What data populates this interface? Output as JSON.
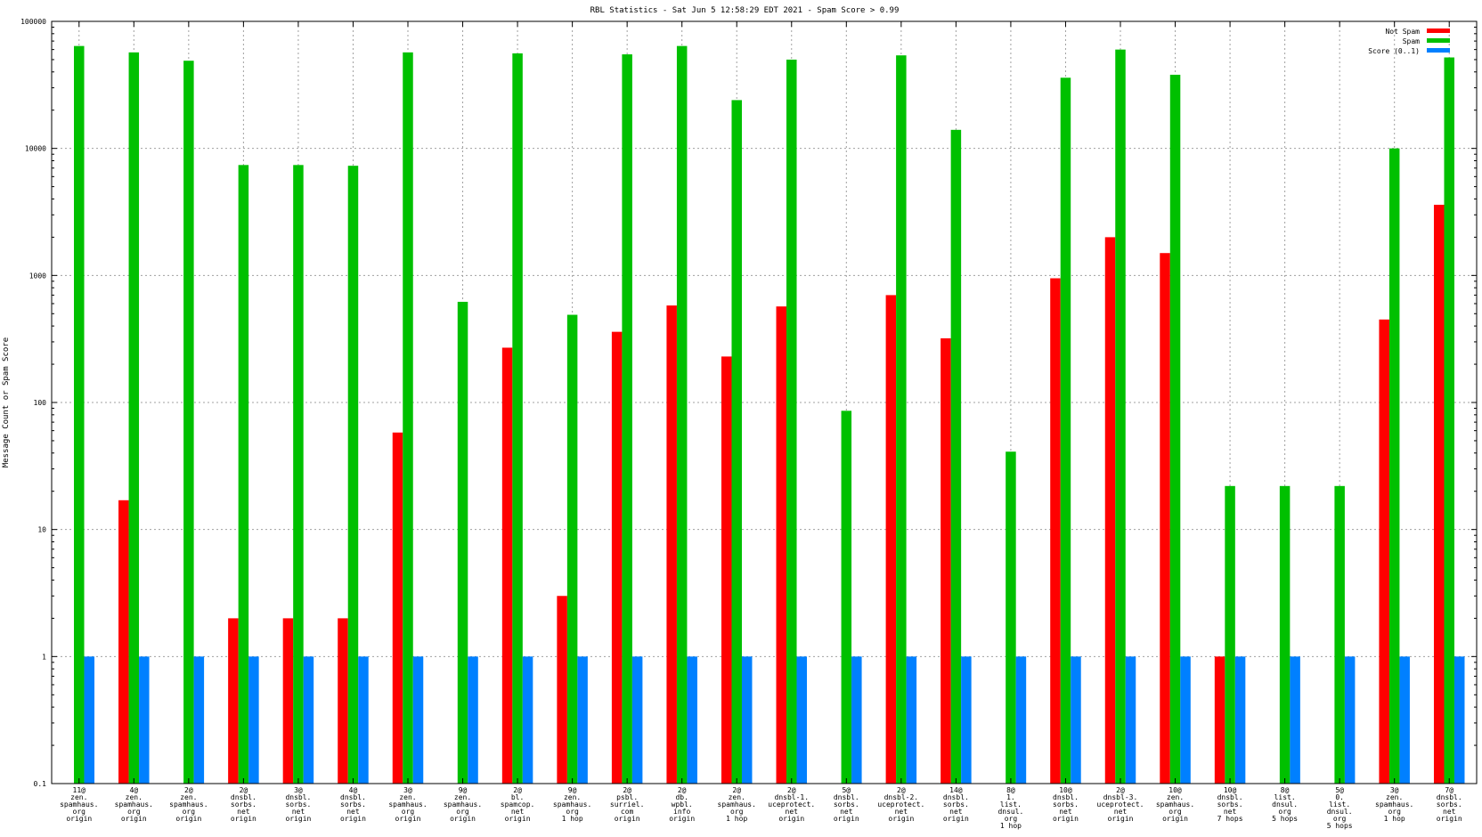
{
  "chart_data": {
    "type": "bar",
    "title": "RBL Statistics - Sat Jun  5 12:58:29 EDT 2021 - Spam Score > 0.99",
    "xlabel": "",
    "ylabel": "Message Count or Spam Score",
    "yscale": "log",
    "ylim": [
      0.1,
      100000
    ],
    "yticks": [
      0.1,
      1,
      10,
      100,
      1000,
      10000,
      100000
    ],
    "ytick_labels": [
      "0.1",
      "1",
      "10",
      "100",
      "1000",
      "10000",
      "100000"
    ],
    "grid": true,
    "legend_position": "top-right",
    "categories": [
      [
        "11@",
        "zen.",
        "spamhaus.",
        "org",
        "origin"
      ],
      [
        "4@",
        "zen.",
        "spamhaus.",
        "org",
        "origin"
      ],
      [
        "2@",
        "zen.",
        "spamhaus.",
        "org",
        "origin"
      ],
      [
        "2@",
        "dnsbl.",
        "sorbs.",
        "net",
        "origin"
      ],
      [
        "3@",
        "dnsbl.",
        "sorbs.",
        "net",
        "origin"
      ],
      [
        "4@",
        "dnsbl.",
        "sorbs.",
        "net",
        "origin"
      ],
      [
        "3@",
        "zen.",
        "spamhaus.",
        "org",
        "origin"
      ],
      [
        "9@",
        "zen.",
        "spamhaus.",
        "org",
        "origin"
      ],
      [
        "2@",
        "bl.",
        "spamcop.",
        "net",
        "origin"
      ],
      [
        "9@",
        "zen.",
        "spamhaus.",
        "org",
        "1 hop"
      ],
      [
        "2@",
        "psbl.",
        "surriel.",
        "com",
        "origin"
      ],
      [
        "2@",
        "db.",
        "wpbl.",
        "info",
        "origin"
      ],
      [
        "2@",
        "zen.",
        "spamhaus.",
        "org",
        "1 hop"
      ],
      [
        "2@",
        "dnsbl-1.",
        "uceprotect.",
        "net",
        "origin"
      ],
      [
        "5@",
        "dnsbl.",
        "sorbs.",
        "net",
        "origin"
      ],
      [
        "2@",
        "dnsbl-2.",
        "uceprotect.",
        "net",
        "origin"
      ],
      [
        "14@",
        "dnsbl.",
        "sorbs.",
        "net",
        "origin"
      ],
      [
        "8@",
        "1.",
        "list.",
        "dnsul.",
        "org",
        "1 hop"
      ],
      [
        "10@",
        "dnsbl.",
        "sorbs.",
        "net",
        "origin"
      ],
      [
        "2@",
        "dnsbl-3.",
        "uceprotect.",
        "net",
        "origin"
      ],
      [
        "10@",
        "zen.",
        "spamhaus.",
        "org",
        "origin"
      ],
      [
        "10@",
        "dnsbl.",
        "sorbs.",
        "net",
        "7 hops"
      ],
      [
        "8@",
        "list.",
        "dnsul.",
        "org",
        "5 hops"
      ],
      [
        "5@",
        "0.",
        "list.",
        "dnsul.",
        "org",
        "5 hops"
      ],
      [
        "3@",
        "zen.",
        "spamhaus.",
        "org",
        "1 hop"
      ],
      [
        "7@",
        "dnsbl.",
        "sorbs.",
        "net",
        "origin"
      ]
    ],
    "series": [
      {
        "name": "Not Spam",
        "color": "#ff0000",
        "values": [
          null,
          17,
          null,
          2,
          2,
          2,
          58,
          null,
          270,
          3,
          360,
          580,
          230,
          570,
          null,
          700,
          320,
          null,
          950,
          2000,
          1500,
          1,
          null,
          null,
          450,
          3600
        ]
      },
      {
        "name": "Spam",
        "color": "#00c000",
        "values": [
          64000,
          57000,
          49000,
          7400,
          7400,
          7300,
          57000,
          620,
          56000,
          490,
          55000,
          64000,
          24000,
          50000,
          86,
          54000,
          14000,
          41,
          36000,
          60000,
          38000,
          22,
          22,
          22,
          10000,
          52000
        ]
      },
      {
        "name": "Score (0..1)",
        "color": "#0080ff",
        "values": [
          1,
          1,
          1,
          1,
          1,
          1,
          1,
          1,
          1,
          1,
          1,
          1,
          1,
          1,
          1,
          1,
          1,
          1,
          1,
          1,
          1,
          1,
          1,
          1,
          1,
          1
        ]
      }
    ]
  }
}
